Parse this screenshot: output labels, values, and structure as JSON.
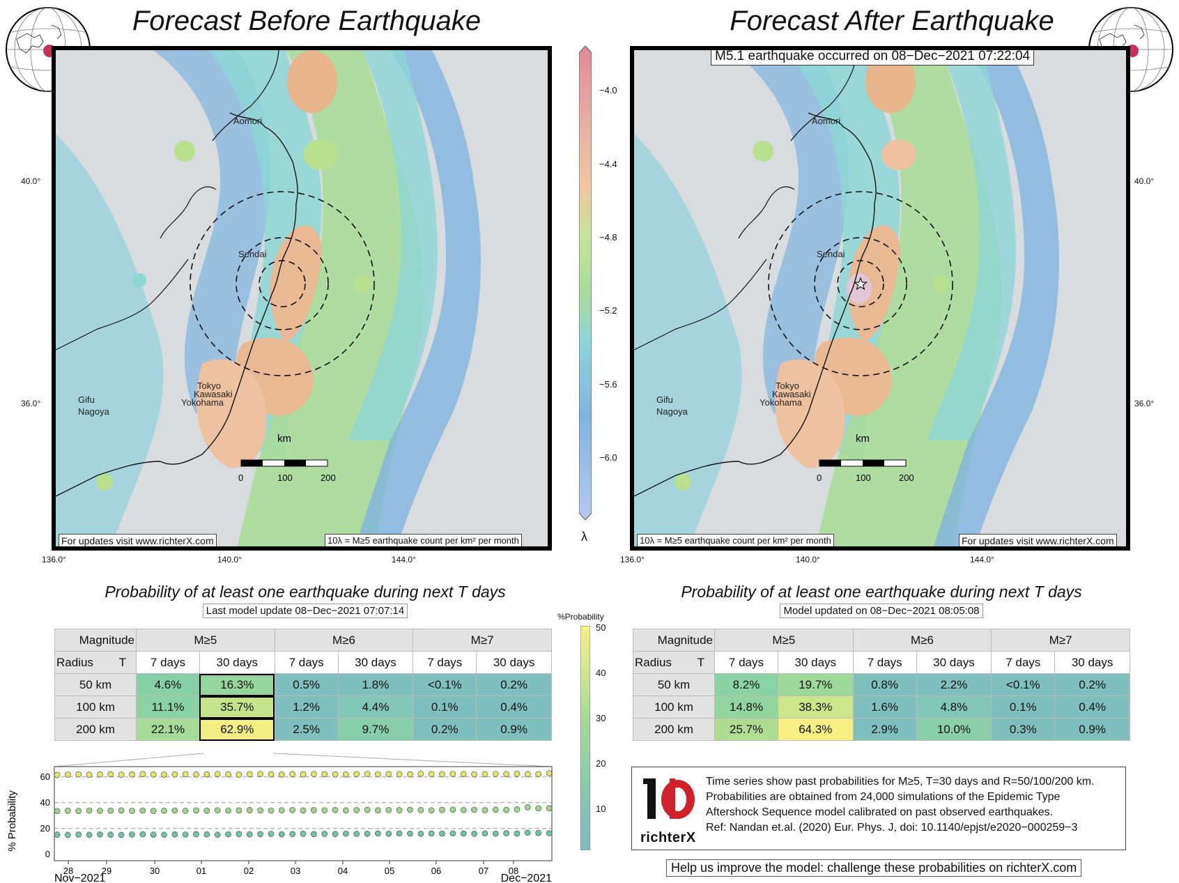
{
  "left_panel": {
    "title": "Forecast Before Earthquake",
    "update_note": "For updates visit www.richterX.com",
    "legend_note": "10λ = M≥5 earthquake count per km² per month",
    "lon_ticks": [
      "136.0°",
      "140.0°",
      "144.0°"
    ],
    "lat_ticks": [
      "40.0°",
      "36.0°"
    ],
    "cities": [
      "Aomori",
      "Sendai",
      "Tokyo",
      "Kawasaki",
      "Yokohama",
      "Gifu",
      "Nagoya"
    ],
    "scale_label": "km",
    "scale_ticks": [
      "0",
      "100",
      "200"
    ]
  },
  "right_panel": {
    "title": "Forecast After Earthquake",
    "event_banner": "M5.1 earthquake occurred on 08−Dec−2021 07:22:04",
    "update_note": "For updates visit www.richterX.com",
    "legend_note": "10λ = M≥5 earthquake count per km² per month",
    "lon_ticks": [
      "136.0°",
      "140.0°",
      "144.0°"
    ],
    "lat_ticks": [
      "40.0°",
      "36.0°"
    ],
    "cities": [
      "Aomori",
      "Sendai",
      "Tokyo",
      "Kawasaki",
      "Yokohama",
      "Gifu",
      "Nagoya"
    ],
    "scale_label": "km",
    "scale_ticks": [
      "0",
      "100",
      "200"
    ]
  },
  "colorbar": {
    "symbol": "λ",
    "ticks": [
      "−4.0",
      "−4.4",
      "−4.8",
      "−5.2",
      "−5.6",
      "−6.0"
    ]
  },
  "prob_colorbar": {
    "title": "%Probability",
    "ticks": [
      "50",
      "40",
      "30",
      "20",
      "10"
    ]
  },
  "left_table": {
    "title": "Probability of at least one earthquake during next T days",
    "subtitle": "Last model update 08−Dec−2021 07:07:14",
    "h_magnitude": "Magnitude",
    "h_radius": "Radius",
    "h_T": "T",
    "magnitudes": [
      "M≥5",
      "M≥6",
      "M≥7"
    ],
    "periods": [
      "7 days",
      "30 days",
      "7 days",
      "30 days",
      "7 days",
      "30 days"
    ],
    "rows": [
      {
        "radius": "50 km",
        "cells": [
          "4.6%",
          "16.3%",
          "0.5%",
          "1.8%",
          "<0.1%",
          "0.2%"
        ]
      },
      {
        "radius": "100 km",
        "cells": [
          "11.1%",
          "35.7%",
          "1.2%",
          "4.4%",
          "0.1%",
          "0.4%"
        ]
      },
      {
        "radius": "200 km",
        "cells": [
          "22.1%",
          "62.9%",
          "2.5%",
          "9.7%",
          "0.2%",
          "0.9%"
        ]
      }
    ]
  },
  "right_table": {
    "title": "Probability of at least one earthquake during next T days",
    "subtitle": "Model updated on 08−Dec−2021 08:05:08",
    "h_magnitude": "Magnitude",
    "h_radius": "Radius",
    "h_T": "T",
    "magnitudes": [
      "M≥5",
      "M≥6",
      "M≥7"
    ],
    "periods": [
      "7 days",
      "30 days",
      "7 days",
      "30 days",
      "7 days",
      "30 days"
    ],
    "rows": [
      {
        "radius": "50 km",
        "cells": [
          "8.2%",
          "19.7%",
          "0.8%",
          "2.2%",
          "<0.1%",
          "0.2%"
        ]
      },
      {
        "radius": "100 km",
        "cells": [
          "14.8%",
          "38.3%",
          "1.6%",
          "4.8%",
          "0.1%",
          "0.4%"
        ]
      },
      {
        "radius": "200 km",
        "cells": [
          "25.7%",
          "64.3%",
          "2.9%",
          "10.0%",
          "0.3%",
          "0.9%"
        ]
      }
    ]
  },
  "chart_data": {
    "type": "scatter",
    "title": "",
    "ylabel": "% Probability",
    "xlabel": "",
    "ylim": [
      -5,
      68
    ],
    "yticks": [
      "0",
      "20",
      "40",
      "60"
    ],
    "x_ticks": [
      "28",
      "29",
      "30",
      "01",
      "02",
      "03",
      "04",
      "05",
      "06",
      "07",
      "08"
    ],
    "x_month_left": "Nov−2021",
    "x_month_right": "Dec−2021",
    "series": [
      {
        "name": "R=200 km",
        "color": "#e8e46a",
        "values": [
          61.5,
          61.8,
          62.0,
          61.7,
          61.9,
          62.1,
          61.8,
          62.0,
          62.2,
          61.9,
          61.8,
          62.0,
          62.1,
          61.9,
          62.0,
          62.2,
          62.0,
          61.8,
          62.1,
          62.3,
          62.0,
          61.9,
          62.1,
          62.0,
          62.2,
          62.1,
          62.0,
          61.9,
          62.1,
          62.3,
          62.0,
          62.2,
          62.1,
          62.0,
          62.4,
          62.2,
          62.1,
          62.3,
          62.2,
          62.0,
          62.1,
          62.3,
          62.2,
          62.4,
          62.1,
          62.2,
          62.9
        ]
      },
      {
        "name": "R=100 km",
        "color": "#9fd48a",
        "values": [
          33.5,
          33.8,
          33.6,
          33.9,
          33.7,
          33.8,
          34.0,
          33.7,
          33.9,
          33.6,
          33.8,
          33.9,
          33.7,
          34.0,
          33.8,
          34.1,
          33.9,
          34.0,
          34.2,
          34.0,
          33.9,
          34.1,
          34.3,
          34.0,
          34.2,
          34.1,
          34.3,
          34.0,
          34.2,
          34.4,
          34.1,
          34.3,
          34.2,
          34.5,
          34.3,
          34.1,
          34.4,
          34.6,
          34.3,
          34.5,
          34.2,
          34.6,
          34.4,
          34.8,
          36.5,
          35.6,
          35.7
        ]
      },
      {
        "name": "R=50 km",
        "color": "#6ec4a6",
        "values": [
          15.2,
          15.0,
          15.3,
          15.1,
          15.4,
          15.2,
          15.0,
          15.3,
          15.5,
          15.2,
          15.1,
          15.4,
          15.3,
          15.6,
          15.4,
          15.2,
          15.5,
          15.7,
          15.4,
          15.6,
          15.8,
          15.5,
          15.7,
          15.9,
          15.6,
          15.8,
          15.7,
          16.0,
          15.8,
          15.9,
          16.1,
          15.9,
          16.2,
          16.0,
          15.9,
          16.1,
          16.0,
          16.2,
          16.1,
          15.9,
          16.2,
          16.0,
          16.3,
          16.1,
          16.8,
          16.5,
          16.3
        ]
      }
    ]
  },
  "info": {
    "logo_text": "richterX",
    "lines": [
      "Time series show past probabilities for M≥5, T=30 days and R=50/100/200 km.",
      "Probabilities are obtained from 24,000 simulations of the Epidemic Type",
      "Aftershock Sequence model calibrated on past observed earthquakes.",
      "Ref: Nandan et.al. (2020) Eur. Phys. J, doi: 10.1140/epjst/e2020−000259−3"
    ],
    "help": "Help us improve the model: challenge these probabilities on richterX.com"
  }
}
